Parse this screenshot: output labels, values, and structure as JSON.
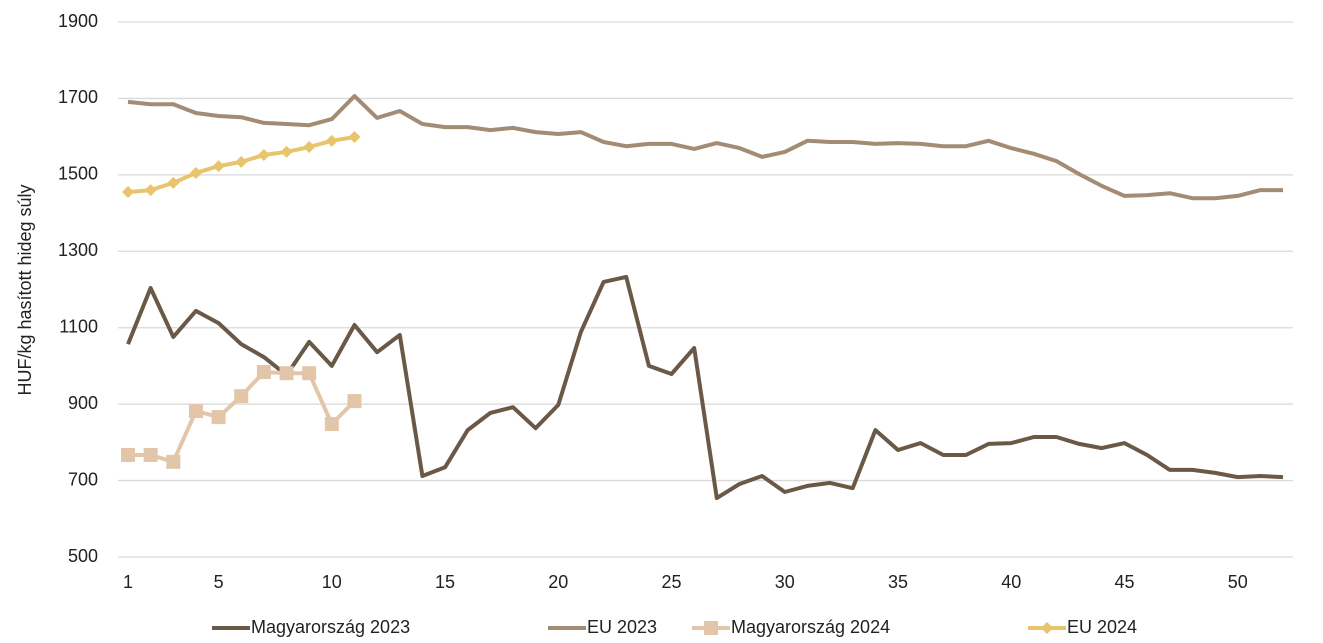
{
  "chart_data": {
    "type": "line",
    "y_label": "HUF/kg hasított hideg súly",
    "x": [
      1,
      2,
      3,
      4,
      5,
      6,
      7,
      8,
      9,
      10,
      11,
      12,
      13,
      14,
      15,
      16,
      17,
      18,
      19,
      20,
      21,
      22,
      23,
      24,
      25,
      26,
      27,
      28,
      29,
      30,
      31,
      32,
      33,
      34,
      35,
      36,
      37,
      38,
      39,
      40,
      41,
      42,
      43,
      44,
      45,
      46,
      47,
      48,
      49,
      50,
      51,
      52
    ],
    "xlim": [
      1,
      52
    ],
    "xticks": [
      1,
      5,
      10,
      15,
      20,
      25,
      30,
      35,
      40,
      45,
      50
    ],
    "ylim": [
      500,
      1900
    ],
    "yticks": [
      500,
      700,
      900,
      1100,
      1300,
      1500,
      1700,
      1900
    ],
    "grid": true,
    "legend": "bottom",
    "series": [
      {
        "name": "Magyarország 2023",
        "color": "#6b5948",
        "marker": "none",
        "values": [
          1057,
          1204,
          1076,
          1144,
          1112,
          1057,
          1023,
          976,
          1063,
          1000,
          1107,
          1036,
          1081,
          712,
          735,
          832,
          877,
          892,
          837,
          898,
          1089,
          1220,
          1233,
          1000,
          979,
          1047,
          654,
          691,
          712,
          670,
          686,
          694,
          680,
          832,
          780,
          798,
          767,
          767,
          796,
          798,
          814,
          814,
          796,
          785,
          798,
          767,
          728,
          728,
          720,
          709,
          712,
          709
        ]
      },
      {
        "name": "EU 2023",
        "color": "#a38b74",
        "marker": "none",
        "values": [
          1691,
          1685,
          1685,
          1662,
          1654,
          1651,
          1636,
          1633,
          1630,
          1646,
          1706,
          1649,
          1667,
          1633,
          1625,
          1625,
          1617,
          1623,
          1612,
          1607,
          1612,
          1586,
          1575,
          1581,
          1581,
          1568,
          1583,
          1570,
          1547,
          1560,
          1589,
          1586,
          1586,
          1581,
          1583,
          1581,
          1575,
          1575,
          1589,
          1570,
          1555,
          1536,
          1502,
          1471,
          1445,
          1447,
          1452,
          1439,
          1439,
          1445,
          1460,
          1460
        ]
      },
      {
        "name": "Magyarország 2024",
        "color": "#e3c6aa",
        "marker": "square",
        "values": [
          767,
          767,
          749,
          882,
          866,
          921,
          984,
          981,
          981,
          848,
          908,
          null,
          null,
          null,
          null,
          null,
          null,
          null,
          null,
          null,
          null,
          null,
          null,
          null,
          null,
          null,
          null,
          null,
          null,
          null,
          null,
          null,
          null,
          null,
          null,
          null,
          null,
          null,
          null,
          null,
          null,
          null,
          null,
          null,
          null,
          null,
          null,
          null,
          null,
          null,
          null,
          null
        ]
      },
      {
        "name": "EU 2024",
        "color": "#e8c46c",
        "marker": "diamond",
        "values": [
          1455,
          1460,
          1479,
          1505,
          1523,
          1534,
          1552,
          1560,
          1573,
          1589,
          1599,
          null,
          null,
          null,
          null,
          null,
          null,
          null,
          null,
          null,
          null,
          null,
          null,
          null,
          null,
          null,
          null,
          null,
          null,
          null,
          null,
          null,
          null,
          null,
          null,
          null,
          null,
          null,
          null,
          null,
          null,
          null,
          null,
          null,
          null,
          null,
          null,
          null,
          null,
          null,
          null,
          null
        ]
      }
    ]
  }
}
